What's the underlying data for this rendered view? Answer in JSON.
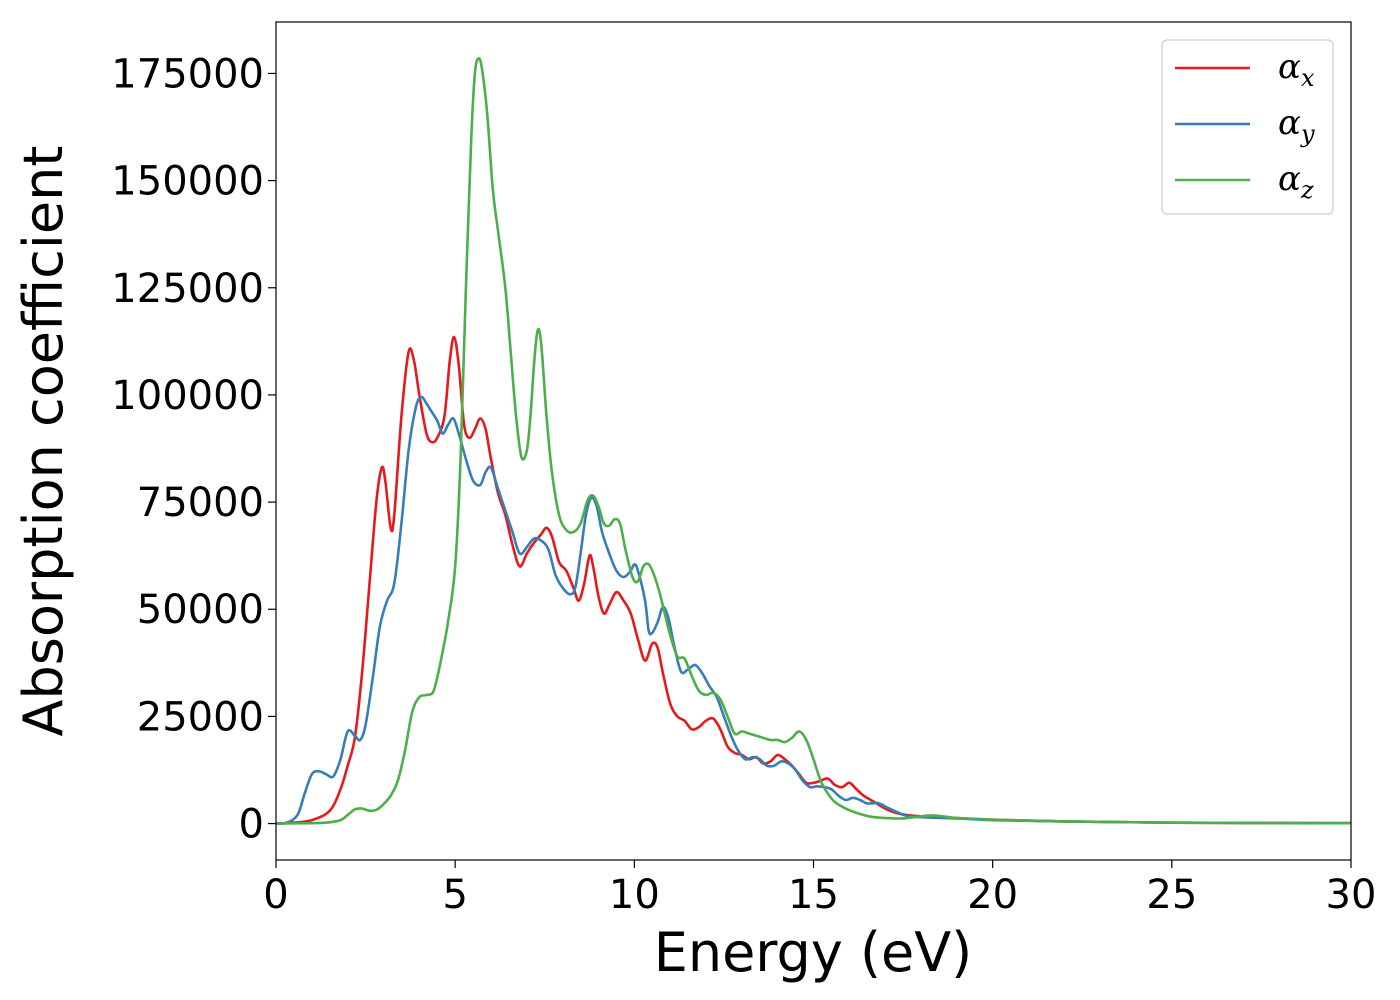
{
  "chart_data": {
    "type": "line",
    "title": "",
    "xlabel": "Energy (eV)",
    "ylabel": "Absorption coefficient",
    "xlim": [
      0,
      30
    ],
    "ylim": [
      -8500,
      187000
    ],
    "x_ticks": [
      0,
      5,
      10,
      15,
      20,
      25,
      30
    ],
    "y_ticks": [
      0,
      25000,
      50000,
      75000,
      100000,
      125000,
      150000,
      175000
    ],
    "grid": false,
    "legend_position": "top-right",
    "series": [
      {
        "name": "α_x",
        "label_main": "α",
        "label_sub": "x",
        "color": "#e41a1c",
        "points": [
          [
            0,
            0
          ],
          [
            0.5,
            200
          ],
          [
            1.0,
            800
          ],
          [
            1.5,
            3000
          ],
          [
            1.8,
            8000
          ],
          [
            2.0,
            13500
          ],
          [
            2.2,
            20000
          ],
          [
            2.4,
            35000
          ],
          [
            2.6,
            55000
          ],
          [
            2.8,
            75000
          ],
          [
            2.95,
            83000
          ],
          [
            3.05,
            80000
          ],
          [
            3.2,
            69000
          ],
          [
            3.3,
            72000
          ],
          [
            3.5,
            95000
          ],
          [
            3.7,
            110000
          ],
          [
            3.85,
            108000
          ],
          [
            4.0,
            100000
          ],
          [
            4.2,
            91000
          ],
          [
            4.35,
            89000
          ],
          [
            4.5,
            90000
          ],
          [
            4.7,
            95000
          ],
          [
            4.85,
            108000
          ],
          [
            4.97,
            113500
          ],
          [
            5.1,
            107000
          ],
          [
            5.25,
            93000
          ],
          [
            5.4,
            90000
          ],
          [
            5.55,
            92000
          ],
          [
            5.7,
            94500
          ],
          [
            5.85,
            92000
          ],
          [
            6.0,
            85000
          ],
          [
            6.2,
            77000
          ],
          [
            6.4,
            72000
          ],
          [
            6.6,
            65000
          ],
          [
            6.8,
            60000
          ],
          [
            7.0,
            63000
          ],
          [
            7.2,
            65500
          ],
          [
            7.4,
            67500
          ],
          [
            7.55,
            69000
          ],
          [
            7.7,
            67000
          ],
          [
            7.9,
            61000
          ],
          [
            8.1,
            59000
          ],
          [
            8.3,
            55000
          ],
          [
            8.45,
            52000
          ],
          [
            8.6,
            56000
          ],
          [
            8.75,
            62500
          ],
          [
            8.85,
            60000
          ],
          [
            9.0,
            53000
          ],
          [
            9.15,
            49000
          ],
          [
            9.3,
            51000
          ],
          [
            9.5,
            54000
          ],
          [
            9.7,
            52000
          ],
          [
            9.9,
            49000
          ],
          [
            10.1,
            43000
          ],
          [
            10.3,
            38000
          ],
          [
            10.5,
            42000
          ],
          [
            10.65,
            41000
          ],
          [
            10.8,
            35000
          ],
          [
            11.0,
            28000
          ],
          [
            11.2,
            25000
          ],
          [
            11.4,
            24000
          ],
          [
            11.6,
            22000
          ],
          [
            11.8,
            22500
          ],
          [
            12.0,
            24000
          ],
          [
            12.2,
            24500
          ],
          [
            12.4,
            22000
          ],
          [
            12.6,
            18000
          ],
          [
            12.8,
            16500
          ],
          [
            13.0,
            16000
          ],
          [
            13.2,
            15000
          ],
          [
            13.4,
            15500
          ],
          [
            13.6,
            14000
          ],
          [
            13.8,
            14500
          ],
          [
            14.0,
            16000
          ],
          [
            14.2,
            15000
          ],
          [
            14.4,
            13500
          ],
          [
            14.6,
            11500
          ],
          [
            14.8,
            9500
          ],
          [
            15.0,
            9500
          ],
          [
            15.2,
            10000
          ],
          [
            15.4,
            10500
          ],
          [
            15.6,
            9000
          ],
          [
            15.8,
            8500
          ],
          [
            16.0,
            9500
          ],
          [
            16.2,
            8000
          ],
          [
            16.4,
            6500
          ],
          [
            16.6,
            5500
          ],
          [
            16.8,
            4500
          ],
          [
            17.0,
            3500
          ],
          [
            17.3,
            2500
          ],
          [
            17.6,
            2000
          ],
          [
            18.0,
            1700
          ],
          [
            19.0,
            1300
          ],
          [
            20.0,
            900
          ],
          [
            22.0,
            500
          ],
          [
            25.0,
            200
          ],
          [
            30.0,
            100
          ]
        ]
      },
      {
        "name": "α_y",
        "label_main": "α",
        "label_sub": "y",
        "color": "#377eb8",
        "points": [
          [
            0,
            0
          ],
          [
            0.3,
            200
          ],
          [
            0.6,
            2000
          ],
          [
            0.8,
            7000
          ],
          [
            1.0,
            11500
          ],
          [
            1.2,
            12200
          ],
          [
            1.4,
            11500
          ],
          [
            1.6,
            11000
          ],
          [
            1.8,
            15000
          ],
          [
            2.0,
            21500
          ],
          [
            2.2,
            20500
          ],
          [
            2.35,
            19500
          ],
          [
            2.5,
            23000
          ],
          [
            2.7,
            34000
          ],
          [
            2.9,
            46000
          ],
          [
            3.1,
            52000
          ],
          [
            3.3,
            56000
          ],
          [
            3.5,
            70000
          ],
          [
            3.7,
            87000
          ],
          [
            3.9,
            97000
          ],
          [
            4.05,
            99500
          ],
          [
            4.2,
            98000
          ],
          [
            4.35,
            96000
          ],
          [
            4.5,
            94000
          ],
          [
            4.65,
            91000
          ],
          [
            4.8,
            93000
          ],
          [
            4.95,
            94500
          ],
          [
            5.1,
            91000
          ],
          [
            5.3,
            85000
          ],
          [
            5.5,
            80000
          ],
          [
            5.7,
            79000
          ],
          [
            5.85,
            82000
          ],
          [
            6.0,
            83000
          ],
          [
            6.2,
            78000
          ],
          [
            6.4,
            73000
          ],
          [
            6.6,
            68000
          ],
          [
            6.8,
            63000
          ],
          [
            7.0,
            64500
          ],
          [
            7.2,
            66500
          ],
          [
            7.4,
            66000
          ],
          [
            7.6,
            64000
          ],
          [
            7.8,
            58000
          ],
          [
            8.0,
            55000
          ],
          [
            8.2,
            53500
          ],
          [
            8.35,
            55000
          ],
          [
            8.5,
            63000
          ],
          [
            8.65,
            72000
          ],
          [
            8.8,
            76000
          ],
          [
            8.95,
            74000
          ],
          [
            9.1,
            68000
          ],
          [
            9.3,
            63000
          ],
          [
            9.5,
            59000
          ],
          [
            9.7,
            57500
          ],
          [
            9.9,
            59000
          ],
          [
            10.0,
            60500
          ],
          [
            10.1,
            59000
          ],
          [
            10.3,
            52000
          ],
          [
            10.4,
            45000
          ],
          [
            10.5,
            44500
          ],
          [
            10.65,
            47000
          ],
          [
            10.8,
            50500
          ],
          [
            10.95,
            48000
          ],
          [
            11.1,
            42000
          ],
          [
            11.3,
            35500
          ],
          [
            11.5,
            36000
          ],
          [
            11.7,
            37000
          ],
          [
            11.9,
            35000
          ],
          [
            12.1,
            32000
          ],
          [
            12.3,
            29500
          ],
          [
            12.5,
            25000
          ],
          [
            12.7,
            20500
          ],
          [
            12.9,
            17000
          ],
          [
            13.1,
            15000
          ],
          [
            13.3,
            15500
          ],
          [
            13.5,
            15000
          ],
          [
            13.7,
            13500
          ],
          [
            13.9,
            13500
          ],
          [
            14.1,
            14500
          ],
          [
            14.3,
            14000
          ],
          [
            14.5,
            12500
          ],
          [
            14.7,
            10000
          ],
          [
            14.9,
            8500
          ],
          [
            15.1,
            8700
          ],
          [
            15.3,
            8500
          ],
          [
            15.5,
            8000
          ],
          [
            15.7,
            6500
          ],
          [
            15.9,
            5500
          ],
          [
            16.1,
            6000
          ],
          [
            16.3,
            5500
          ],
          [
            16.5,
            4700
          ],
          [
            16.8,
            4800
          ],
          [
            17.0,
            4000
          ],
          [
            17.3,
            2800
          ],
          [
            17.6,
            1800
          ],
          [
            18.0,
            1500
          ],
          [
            19.0,
            1200
          ],
          [
            20.0,
            800
          ],
          [
            22.0,
            500
          ],
          [
            25.0,
            200
          ],
          [
            30.0,
            100
          ]
        ]
      },
      {
        "name": "α_z",
        "label_main": "α",
        "label_sub": "z",
        "color": "#4daf4a",
        "points": [
          [
            0,
            0
          ],
          [
            1.0,
            100
          ],
          [
            1.5,
            300
          ],
          [
            1.8,
            800
          ],
          [
            2.0,
            2000
          ],
          [
            2.2,
            3300
          ],
          [
            2.4,
            3500
          ],
          [
            2.6,
            3000
          ],
          [
            2.8,
            3200
          ],
          [
            3.0,
            4500
          ],
          [
            3.2,
            6500
          ],
          [
            3.4,
            10000
          ],
          [
            3.6,
            17000
          ],
          [
            3.8,
            26000
          ],
          [
            4.0,
            29500
          ],
          [
            4.2,
            30000
          ],
          [
            4.4,
            31000
          ],
          [
            4.6,
            38000
          ],
          [
            4.8,
            47000
          ],
          [
            5.0,
            60000
          ],
          [
            5.15,
            85000
          ],
          [
            5.3,
            125000
          ],
          [
            5.45,
            160000
          ],
          [
            5.55,
            175000
          ],
          [
            5.65,
            178500
          ],
          [
            5.75,
            176000
          ],
          [
            5.9,
            165000
          ],
          [
            6.05,
            148000
          ],
          [
            6.2,
            138000
          ],
          [
            6.4,
            125000
          ],
          [
            6.55,
            110000
          ],
          [
            6.7,
            95000
          ],
          [
            6.85,
            85500
          ],
          [
            7.0,
            87000
          ],
          [
            7.1,
            95000
          ],
          [
            7.2,
            107000
          ],
          [
            7.3,
            115000
          ],
          [
            7.4,
            112000
          ],
          [
            7.55,
            95000
          ],
          [
            7.7,
            82000
          ],
          [
            7.9,
            72000
          ],
          [
            8.1,
            68500
          ],
          [
            8.3,
            68000
          ],
          [
            8.5,
            70000
          ],
          [
            8.7,
            75500
          ],
          [
            8.85,
            76500
          ],
          [
            9.0,
            74000
          ],
          [
            9.15,
            70000
          ],
          [
            9.3,
            69500
          ],
          [
            9.45,
            71000
          ],
          [
            9.6,
            70000
          ],
          [
            9.75,
            64000
          ],
          [
            9.95,
            57500
          ],
          [
            10.1,
            56500
          ],
          [
            10.25,
            60000
          ],
          [
            10.4,
            60500
          ],
          [
            10.55,
            58000
          ],
          [
            10.7,
            54000
          ],
          [
            10.85,
            49000
          ],
          [
            11.0,
            44000
          ],
          [
            11.2,
            39000
          ],
          [
            11.4,
            38500
          ],
          [
            11.6,
            34500
          ],
          [
            11.8,
            31000
          ],
          [
            12.0,
            30000
          ],
          [
            12.2,
            30500
          ],
          [
            12.4,
            29000
          ],
          [
            12.6,
            25000
          ],
          [
            12.8,
            21000
          ],
          [
            13.0,
            21500
          ],
          [
            13.2,
            21000
          ],
          [
            13.4,
            20500
          ],
          [
            13.6,
            20000
          ],
          [
            13.8,
            19500
          ],
          [
            14.0,
            19500
          ],
          [
            14.2,
            19000
          ],
          [
            14.4,
            20000
          ],
          [
            14.6,
            21500
          ],
          [
            14.8,
            19500
          ],
          [
            15.0,
            15000
          ],
          [
            15.2,
            10000
          ],
          [
            15.4,
            7000
          ],
          [
            15.6,
            5000
          ],
          [
            15.9,
            3500
          ],
          [
            16.2,
            2500
          ],
          [
            16.6,
            1600
          ],
          [
            17.0,
            1300
          ],
          [
            17.5,
            1200
          ],
          [
            18.0,
            1700
          ],
          [
            18.3,
            1900
          ],
          [
            18.7,
            1600
          ],
          [
            19.0,
            1300
          ],
          [
            20.0,
            900
          ],
          [
            22.0,
            500
          ],
          [
            25.0,
            200
          ],
          [
            30.0,
            100
          ]
        ]
      }
    ]
  }
}
